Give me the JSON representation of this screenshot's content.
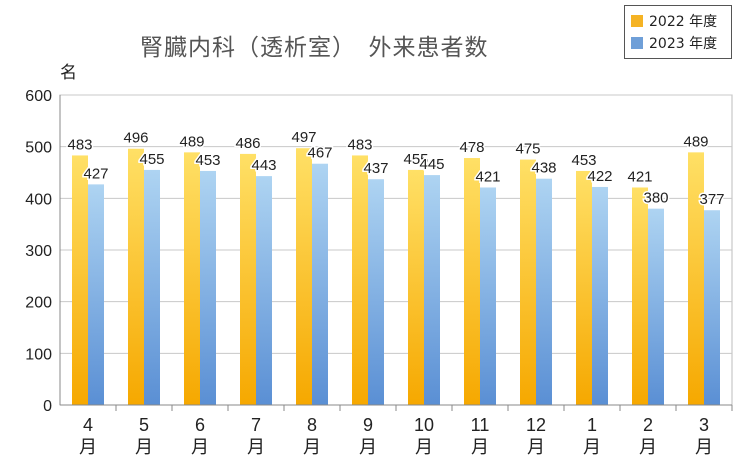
{
  "title": "腎臓内科（透析室）　外来患者数",
  "ylabel": "名",
  "legend": [
    {
      "label": "2022 年度",
      "color": "#f5b324"
    },
    {
      "label": "2023 年度",
      "color": "#6f9fd8"
    }
  ],
  "chart_data": {
    "type": "bar",
    "title": "腎臓内科（透析室）　外来患者数",
    "xlabel": "",
    "ylabel": "名",
    "categories": [
      "4月",
      "5月",
      "6月",
      "7月",
      "8月",
      "9月",
      "10月",
      "11月",
      "12月",
      "1月",
      "2月",
      "3月"
    ],
    "category_parts": [
      [
        "4",
        "月"
      ],
      [
        "5",
        "月"
      ],
      [
        "6",
        "月"
      ],
      [
        "7",
        "月"
      ],
      [
        "8",
        "月"
      ],
      [
        "9",
        "月"
      ],
      [
        "10",
        "月"
      ],
      [
        "11",
        "月"
      ],
      [
        "12",
        "月"
      ],
      [
        "1",
        "月"
      ],
      [
        "2",
        "月"
      ],
      [
        "3",
        "月"
      ]
    ],
    "series": [
      {
        "name": "2022 年度",
        "values": [
          483,
          496,
          489,
          486,
          497,
          483,
          455,
          478,
          475,
          453,
          421,
          489
        ]
      },
      {
        "name": "2023 年度",
        "values": [
          427,
          455,
          453,
          443,
          467,
          437,
          445,
          421,
          438,
          422,
          380,
          377
        ]
      }
    ],
    "ylim": [
      0,
      600
    ],
    "yticks": [
      0,
      100,
      200,
      300,
      400,
      500,
      600
    ],
    "grid": true,
    "legend_position": "top-right"
  }
}
